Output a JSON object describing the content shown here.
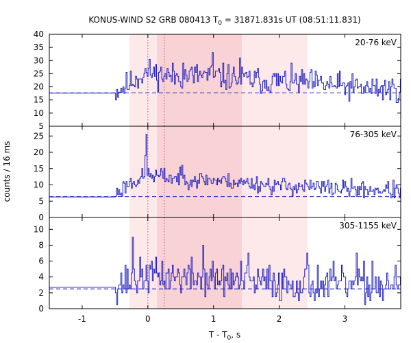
{
  "chart_data": {
    "type": "line",
    "title_text": "KONUS-WIND S2 GRB 080413 T",
    "title_sub": "0",
    "title_rest": " = 31871.831s UT (08:51:11.831)",
    "xlabel_text": "T - T",
    "xlabel_sub": "0",
    "xlabel_rest": ", s",
    "ylabel": "counts / 16 ms",
    "xlim": [
      -1.5,
      3.85
    ],
    "xticks": [
      -1,
      0,
      1,
      2,
      3
    ],
    "xtick_labels": [
      "-1",
      "0",
      "1",
      "2",
      "3"
    ],
    "colors": {
      "line": "#1f1fbf",
      "shade_light": "#fde9e9",
      "shade_dark": "#f9d2d5",
      "marker_line": "#b04050"
    },
    "shaded_intervals": [
      {
        "from": -0.28,
        "to": 2.43,
        "color_key": "shade_light"
      },
      {
        "from": 0.14,
        "to": 1.43,
        "color_key": "shade_dark"
      }
    ],
    "marker_lines": [
      0,
      0.25
    ],
    "panels": [
      {
        "label": "20-76 keV",
        "ylim": [
          5,
          40
        ],
        "yticks": [
          5,
          10,
          15,
          20,
          25,
          30,
          35,
          40
        ],
        "ytick_labels": [
          "5",
          "10",
          "15",
          "20",
          "25",
          "30",
          "35",
          "40"
        ],
        "background": 17.7,
        "seed": 11,
        "pre_level": 17.6,
        "pre_end": -0.5,
        "profile": [
          [
            -0.5,
            18.2
          ],
          [
            -0.3,
            21
          ],
          [
            -0.1,
            24.5
          ],
          [
            0.0,
            25.5
          ],
          [
            0.4,
            24
          ],
          [
            0.8,
            24.5
          ],
          [
            1.2,
            23.5
          ],
          [
            1.6,
            22.5
          ],
          [
            2.0,
            22
          ],
          [
            2.4,
            21.5
          ],
          [
            2.8,
            20.5
          ],
          [
            3.2,
            19.5
          ],
          [
            3.85,
            19
          ]
        ],
        "noise": 4.4,
        "spikes": [
          [
            0.98,
            33
          ],
          [
            1.39,
            31
          ],
          [
            0.54,
            29
          ]
        ],
        "clip": [
          8,
          38
        ]
      },
      {
        "label": "76-305 keV",
        "ylim": [
          0,
          28
        ],
        "yticks": [
          0,
          5,
          10,
          15,
          20,
          25
        ],
        "ytick_labels": [
          "0",
          "5",
          "10",
          "15",
          "20",
          "25"
        ],
        "background": 6.4,
        "seed": 23,
        "pre_level": 6.3,
        "pre_end": -0.5,
        "profile": [
          [
            -0.5,
            7
          ],
          [
            -0.3,
            10.5
          ],
          [
            -0.05,
            12.5
          ],
          [
            0.0,
            13
          ],
          [
            0.5,
            12
          ],
          [
            1.0,
            11.5
          ],
          [
            1.5,
            10.5
          ],
          [
            2.0,
            9.8
          ],
          [
            2.5,
            9.2
          ],
          [
            3.0,
            8.8
          ],
          [
            3.85,
            8.3
          ]
        ],
        "noise": 2.3,
        "spikes": [
          [
            -0.02,
            25.5
          ],
          [
            -0.05,
            19
          ],
          [
            0.52,
            16
          ]
        ],
        "clip": [
          3,
          22
        ]
      },
      {
        "label": "305-1155 keV",
        "ylim": [
          0,
          11.5
        ],
        "yticks": [
          0,
          2,
          4,
          6,
          8,
          10
        ],
        "ytick_labels": [
          "0",
          "2",
          "4",
          "6",
          "8",
          "10"
        ],
        "background": 2.5,
        "seed": 37,
        "pre_level": 2.7,
        "pre_end": -0.5,
        "profile": [
          [
            -0.5,
            3
          ],
          [
            -0.3,
            3.5
          ],
          [
            0.0,
            4.2
          ],
          [
            0.5,
            4
          ],
          [
            1.0,
            3.8
          ],
          [
            1.5,
            3.4
          ],
          [
            2.0,
            3.3
          ],
          [
            2.5,
            3.1
          ],
          [
            3.0,
            3.0
          ],
          [
            3.85,
            2.9
          ]
        ],
        "noise": 2.0,
        "spikes": [
          [
            -0.23,
            9
          ],
          [
            0.83,
            8
          ],
          [
            1.53,
            7
          ],
          [
            2.42,
            7
          ],
          [
            3.18,
            7
          ],
          [
            3.41,
            6
          ]
        ],
        "clip": [
          0,
          9.5
        ]
      }
    ]
  }
}
